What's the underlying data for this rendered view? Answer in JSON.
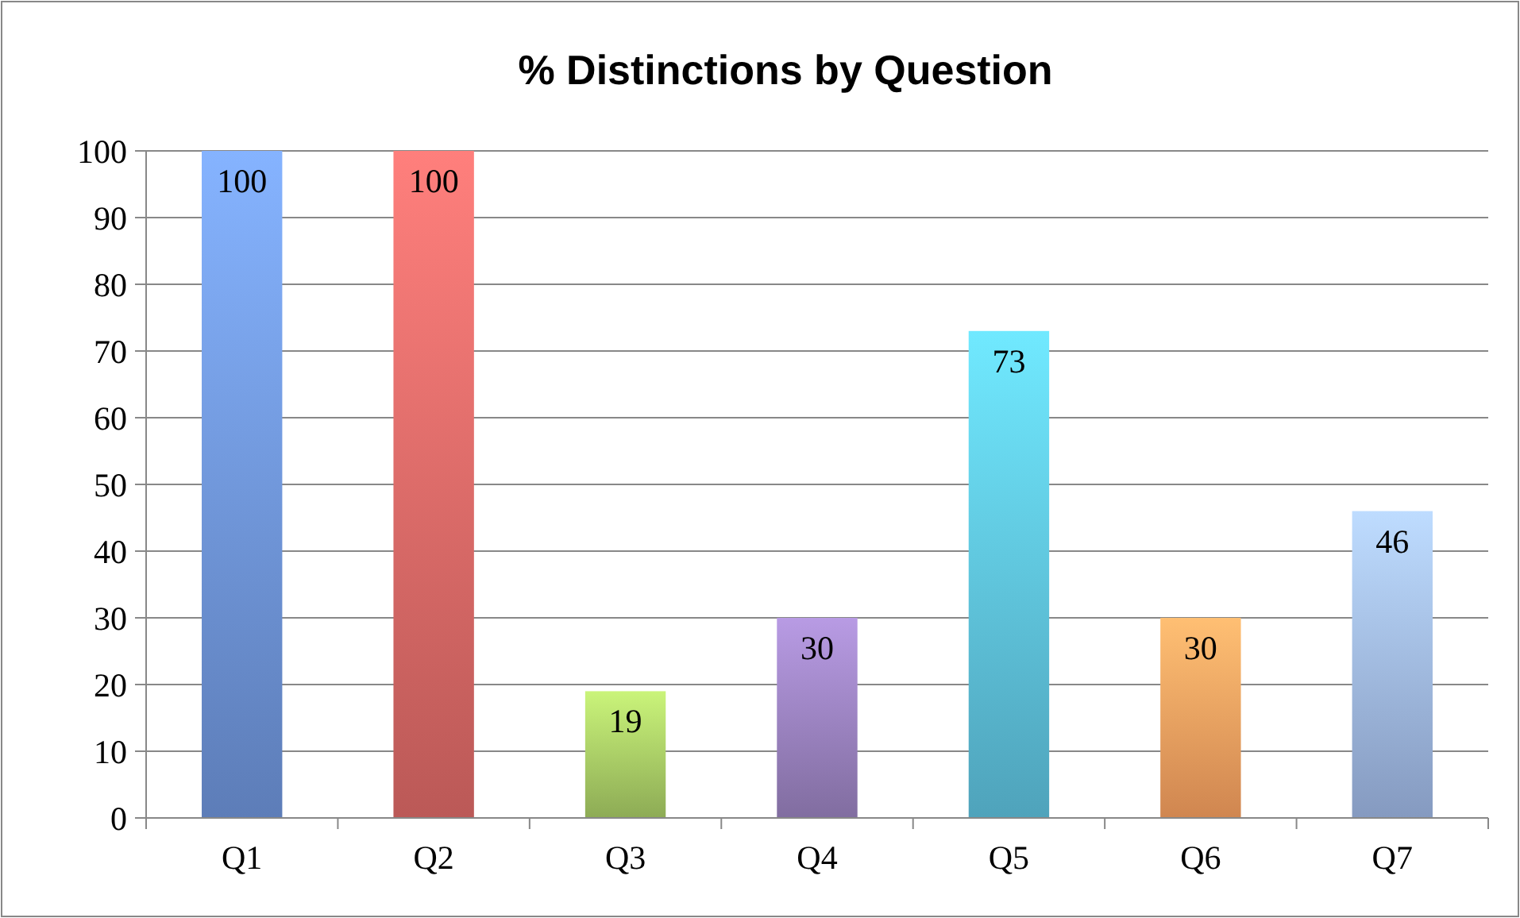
{
  "chart_data": {
    "type": "bar",
    "title": "% Distinctions by Question",
    "categories": [
      "Q1",
      "Q2",
      "Q3",
      "Q4",
      "Q5",
      "Q6",
      "Q7"
    ],
    "values": [
      100,
      100,
      19,
      30,
      73,
      30,
      46
    ],
    "colors": [
      "#6f96dc",
      "#e06a68",
      "#a9cc66",
      "#9a82bf",
      "#5ec3e0",
      "#f9a060",
      "#9fb8e6"
    ],
    "ylim": [
      0,
      100
    ],
    "yticks": [
      0,
      10,
      20,
      30,
      40,
      50,
      60,
      70,
      80,
      90,
      100
    ],
    "grid": "y",
    "data_labels": true
  }
}
